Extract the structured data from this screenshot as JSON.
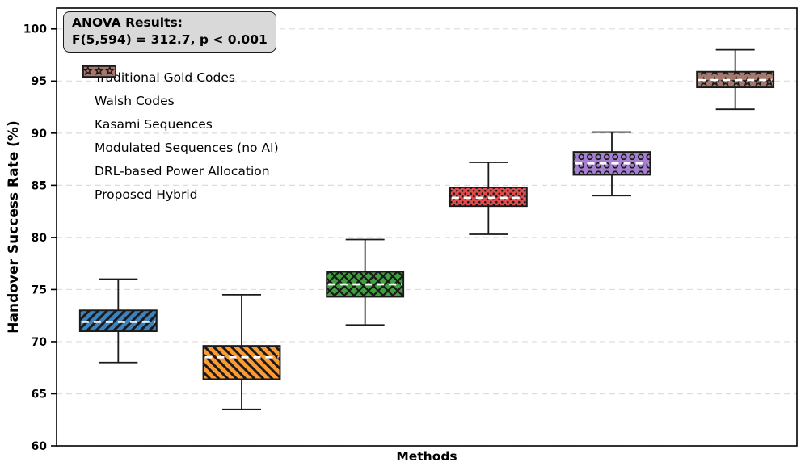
{
  "chart_data": {
    "type": "boxplot",
    "title": "",
    "xlabel": "Methods",
    "ylabel": "Handover Success Rate (%)",
    "ylim": [
      60,
      102
    ],
    "yticks": [
      60,
      65,
      70,
      75,
      80,
      85,
      90,
      95,
      100
    ],
    "grid": "horizontal-dashed",
    "legend_position": "upper-left",
    "annotation": {
      "line1": "ANOVA Results:",
      "line2": "F(5,594) = 312.7, p < 0.001",
      "background": "#d9d9d9",
      "border_color": "#1a1a1a"
    },
    "median_style": {
      "color": "#ffffff",
      "dashed": true
    },
    "edge_color": "#1a1a1a",
    "grid_color": "#dcdcdc",
    "series": [
      {
        "name": "Traditional Gold Codes",
        "color": "#3d82bc",
        "hatch": "diag-up",
        "whisker_low": 68.0,
        "q1": 71.0,
        "median": 71.9,
        "q3": 73.0,
        "whisker_high": 76.0
      },
      {
        "name": "Walsh Codes",
        "color": "#fd9a32",
        "hatch": "diag-down",
        "whisker_low": 63.5,
        "q1": 66.4,
        "median": 68.5,
        "q3": 69.6,
        "whisker_high": 74.5
      },
      {
        "name": "Kasami Sequences",
        "color": "#3da23d",
        "hatch": "cross",
        "whisker_low": 71.6,
        "q1": 74.3,
        "median": 75.5,
        "q3": 76.7,
        "whisker_high": 79.8
      },
      {
        "name": "Modulated Sequences (no AI)",
        "color": "#e24b4b",
        "hatch": "dots",
        "whisker_low": 80.3,
        "q1": 83.0,
        "median": 83.8,
        "q3": 84.8,
        "whisker_high": 87.2
      },
      {
        "name": "DRL-based Power Allocation",
        "color": "#a67fd2",
        "hatch": "circles",
        "whisker_low": 84.0,
        "q1": 86.0,
        "median": 87.1,
        "q3": 88.2,
        "whisker_high": 90.1
      },
      {
        "name": "Proposed Hybrid",
        "color": "#a5786e",
        "hatch": "stars",
        "whisker_low": 92.3,
        "q1": 94.4,
        "median": 95.1,
        "q3": 95.9,
        "whisker_high": 98.0
      }
    ]
  }
}
